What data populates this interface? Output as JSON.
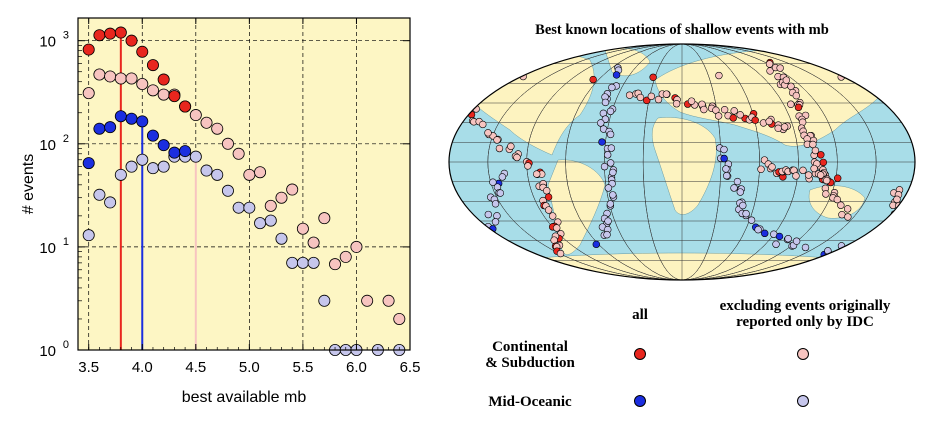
{
  "chart_data": {
    "type": "scatter",
    "xlabel": "best available mb",
    "ylabel": "# events",
    "x_ticks": [
      "3.5",
      "4.0",
      "4.5",
      "5.0",
      "5.5",
      "6.0",
      "6.5"
    ],
    "y_ticks": [
      {
        "base": "10",
        "exp": "0",
        "value": 1
      },
      {
        "base": "10",
        "exp": "1",
        "value": 10
      },
      {
        "base": "10",
        "exp": "2",
        "value": 100
      },
      {
        "base": "10",
        "exp": "3",
        "value": 1000
      }
    ],
    "xlim": [
      3.4,
      6.5
    ],
    "ylim_log10": [
      0,
      3.22
    ],
    "yscale": "log",
    "grid": true,
    "background_color": "#fdf6c4",
    "series": [
      {
        "color": "#e8261e",
        "points": [
          [
            3.5,
            820
          ],
          [
            3.6,
            1130
          ],
          [
            3.7,
            1170
          ],
          [
            3.8,
            1200
          ],
          [
            3.9,
            1000
          ],
          [
            4.0,
            780
          ],
          [
            4.1,
            580
          ],
          [
            4.2,
            420
          ],
          [
            4.3,
            290
          ],
          [
            4.4,
            230
          ]
        ]
      },
      {
        "color": "#f7c4c0",
        "points": [
          [
            3.5,
            310
          ],
          [
            3.6,
            470
          ],
          [
            3.7,
            450
          ],
          [
            3.8,
            430
          ],
          [
            3.9,
            430
          ],
          [
            4.0,
            380
          ],
          [
            4.1,
            330
          ],
          [
            4.2,
            300
          ],
          [
            4.3,
            300
          ],
          [
            4.4,
            230
          ],
          [
            4.5,
            190
          ],
          [
            4.6,
            160
          ],
          [
            4.7,
            140
          ],
          [
            4.8,
            100
          ],
          [
            4.9,
            80
          ],
          [
            5.0,
            50
          ],
          [
            5.1,
            53
          ],
          [
            5.2,
            25
          ],
          [
            5.3,
            30
          ],
          [
            5.4,
            36
          ],
          [
            5.5,
            15
          ],
          [
            5.6,
            11
          ],
          [
            5.7,
            19
          ],
          [
            5.8,
            6.8
          ],
          [
            5.9,
            8
          ],
          [
            6.0,
            10
          ],
          [
            6.1,
            3
          ],
          [
            6.3,
            3
          ],
          [
            6.4,
            2
          ]
        ]
      },
      {
        "color": "#1b2ee0",
        "points": [
          [
            3.5,
            65
          ],
          [
            3.6,
            140
          ],
          [
            3.7,
            145
          ],
          [
            3.8,
            185
          ],
          [
            3.9,
            175
          ],
          [
            4.0,
            165
          ],
          [
            4.1,
            120
          ],
          [
            4.2,
            97
          ],
          [
            4.3,
            82
          ],
          [
            4.4,
            85
          ]
        ]
      },
      {
        "color": "#c6c6ec",
        "points": [
          [
            3.5,
            13
          ],
          [
            3.6,
            32
          ],
          [
            3.7,
            27
          ],
          [
            3.8,
            50
          ],
          [
            3.9,
            60
          ],
          [
            4.0,
            70
          ],
          [
            4.1,
            58
          ],
          [
            4.2,
            60
          ],
          [
            4.3,
            75
          ],
          [
            4.4,
            75
          ],
          [
            4.5,
            75
          ],
          [
            4.6,
            55
          ],
          [
            4.7,
            50
          ],
          [
            4.8,
            35
          ],
          [
            4.9,
            24
          ],
          [
            5.0,
            24
          ],
          [
            5.1,
            17
          ],
          [
            5.2,
            18
          ],
          [
            5.3,
            12
          ],
          [
            5.4,
            7
          ],
          [
            5.5,
            7
          ],
          [
            5.6,
            7
          ],
          [
            5.7,
            3
          ],
          [
            5.8,
            1
          ],
          [
            5.9,
            1
          ],
          [
            6.0,
            1
          ],
          [
            6.2,
            1
          ],
          [
            6.4,
            1
          ]
        ]
      }
    ],
    "vertical_lines": [
      {
        "x": 3.8,
        "color": "#e8261e",
        "top": 1200
      },
      {
        "x": 4.0,
        "color": "#1b2ee0",
        "top": 165
      },
      {
        "x": 4.5,
        "color": "#f7c4c0",
        "top": 75
      }
    ]
  },
  "map": {
    "title": "Best known locations of shallow events with mb",
    "ocean_color": "#a8dde8",
    "land_color": "#fdf3c0"
  },
  "legend": {
    "col_all": "all",
    "col_excl_line1": "excluding events originally",
    "col_excl_line2": "reported only by IDC",
    "row1_line1": "Continental",
    "row1_line2": "& Subduction",
    "row2": "Mid-Oceanic",
    "colors": {
      "cont_all": "#e8261e",
      "cont_excl": "#f7c4c0",
      "ocean_all": "#1b2ee0",
      "ocean_excl": "#c6c6ec"
    }
  }
}
